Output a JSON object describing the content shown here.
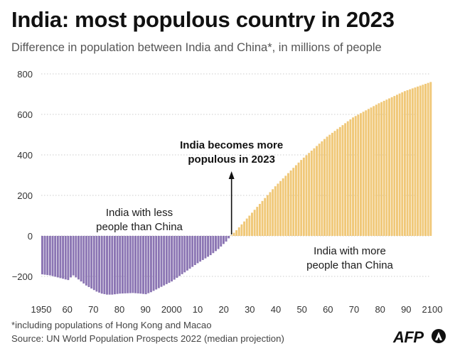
{
  "header": {
    "title": "India: most populous country in 2023",
    "subtitle": "Difference in population between India and China*, in millions of people"
  },
  "footer": {
    "footnote": "*including  populations of Hong Kong and Macao",
    "source": "Source: UN World Population Prospects 2022 (median projection)",
    "logo": "AFP"
  },
  "colors": {
    "negative": "#8b75b3",
    "positive": "#f0c878",
    "grid": "#cccccc",
    "text": "#1a1a1a"
  },
  "chart_data": {
    "type": "bar",
    "title": "India: most populous country in 2023",
    "subtitle": "Difference in population between India and China*, in millions of people",
    "x_range": [
      1950,
      2100
    ],
    "ylim": [
      -250,
      800
    ],
    "y_ticks": [
      {
        "value": 800,
        "label": "800"
      },
      {
        "value": 600,
        "label": "600"
      },
      {
        "value": 400,
        "label": "400"
      },
      {
        "value": 200,
        "label": "200"
      },
      {
        "value": 0,
        "label": "0"
      },
      {
        "value": -200,
        "label": "−200"
      }
    ],
    "x_ticks": [
      {
        "value": 1950,
        "label": "1950"
      },
      {
        "value": 1960,
        "label": "60"
      },
      {
        "value": 1970,
        "label": "70"
      },
      {
        "value": 1980,
        "label": "80"
      },
      {
        "value": 1990,
        "label": "90"
      },
      {
        "value": 2000,
        "label": "2000"
      },
      {
        "value": 2010,
        "label": "10"
      },
      {
        "value": 2020,
        "label": "20"
      },
      {
        "value": 2030,
        "label": "30"
      },
      {
        "value": 2040,
        "label": "40"
      },
      {
        "value": 2050,
        "label": "50"
      },
      {
        "value": 2060,
        "label": "60"
      },
      {
        "value": 2070,
        "label": "70"
      },
      {
        "value": 2080,
        "label": "80"
      },
      {
        "value": 2090,
        "label": "90"
      },
      {
        "value": 2100,
        "label": "2100"
      }
    ],
    "series_anchors": [
      [
        1950,
        -190
      ],
      [
        1953,
        -195
      ],
      [
        1956,
        -205
      ],
      [
        1959,
        -215
      ],
      [
        1960,
        -218
      ],
      [
        1961,
        -205
      ],
      [
        1962,
        -195
      ],
      [
        1963,
        -205
      ],
      [
        1965,
        -225
      ],
      [
        1967,
        -245
      ],
      [
        1969,
        -260
      ],
      [
        1971,
        -275
      ],
      [
        1973,
        -285
      ],
      [
        1975,
        -290
      ],
      [
        1977,
        -290
      ],
      [
        1980,
        -285
      ],
      [
        1985,
        -282
      ],
      [
        1988,
        -285
      ],
      [
        1990,
        -288
      ],
      [
        1992,
        -278
      ],
      [
        1995,
        -258
      ],
      [
        2000,
        -225
      ],
      [
        2005,
        -180
      ],
      [
        2010,
        -135
      ],
      [
        2015,
        -95
      ],
      [
        2018,
        -65
      ],
      [
        2020,
        -40
      ],
      [
        2021,
        -28
      ],
      [
        2022,
        -12
      ],
      [
        2023,
        3
      ],
      [
        2025,
        28
      ],
      [
        2030,
        100
      ],
      [
        2040,
        245
      ],
      [
        2050,
        375
      ],
      [
        2060,
        490
      ],
      [
        2070,
        585
      ],
      [
        2080,
        655
      ],
      [
        2090,
        715
      ],
      [
        2100,
        760
      ]
    ],
    "annotations": [
      {
        "id": "crossover",
        "x": 2023,
        "line1": "India becomes more",
        "line2": "populous in 2023"
      },
      {
        "id": "less",
        "line1": "India with less",
        "line2": "people than China"
      },
      {
        "id": "more",
        "line1": "India with more",
        "line2": "people than China"
      }
    ]
  }
}
